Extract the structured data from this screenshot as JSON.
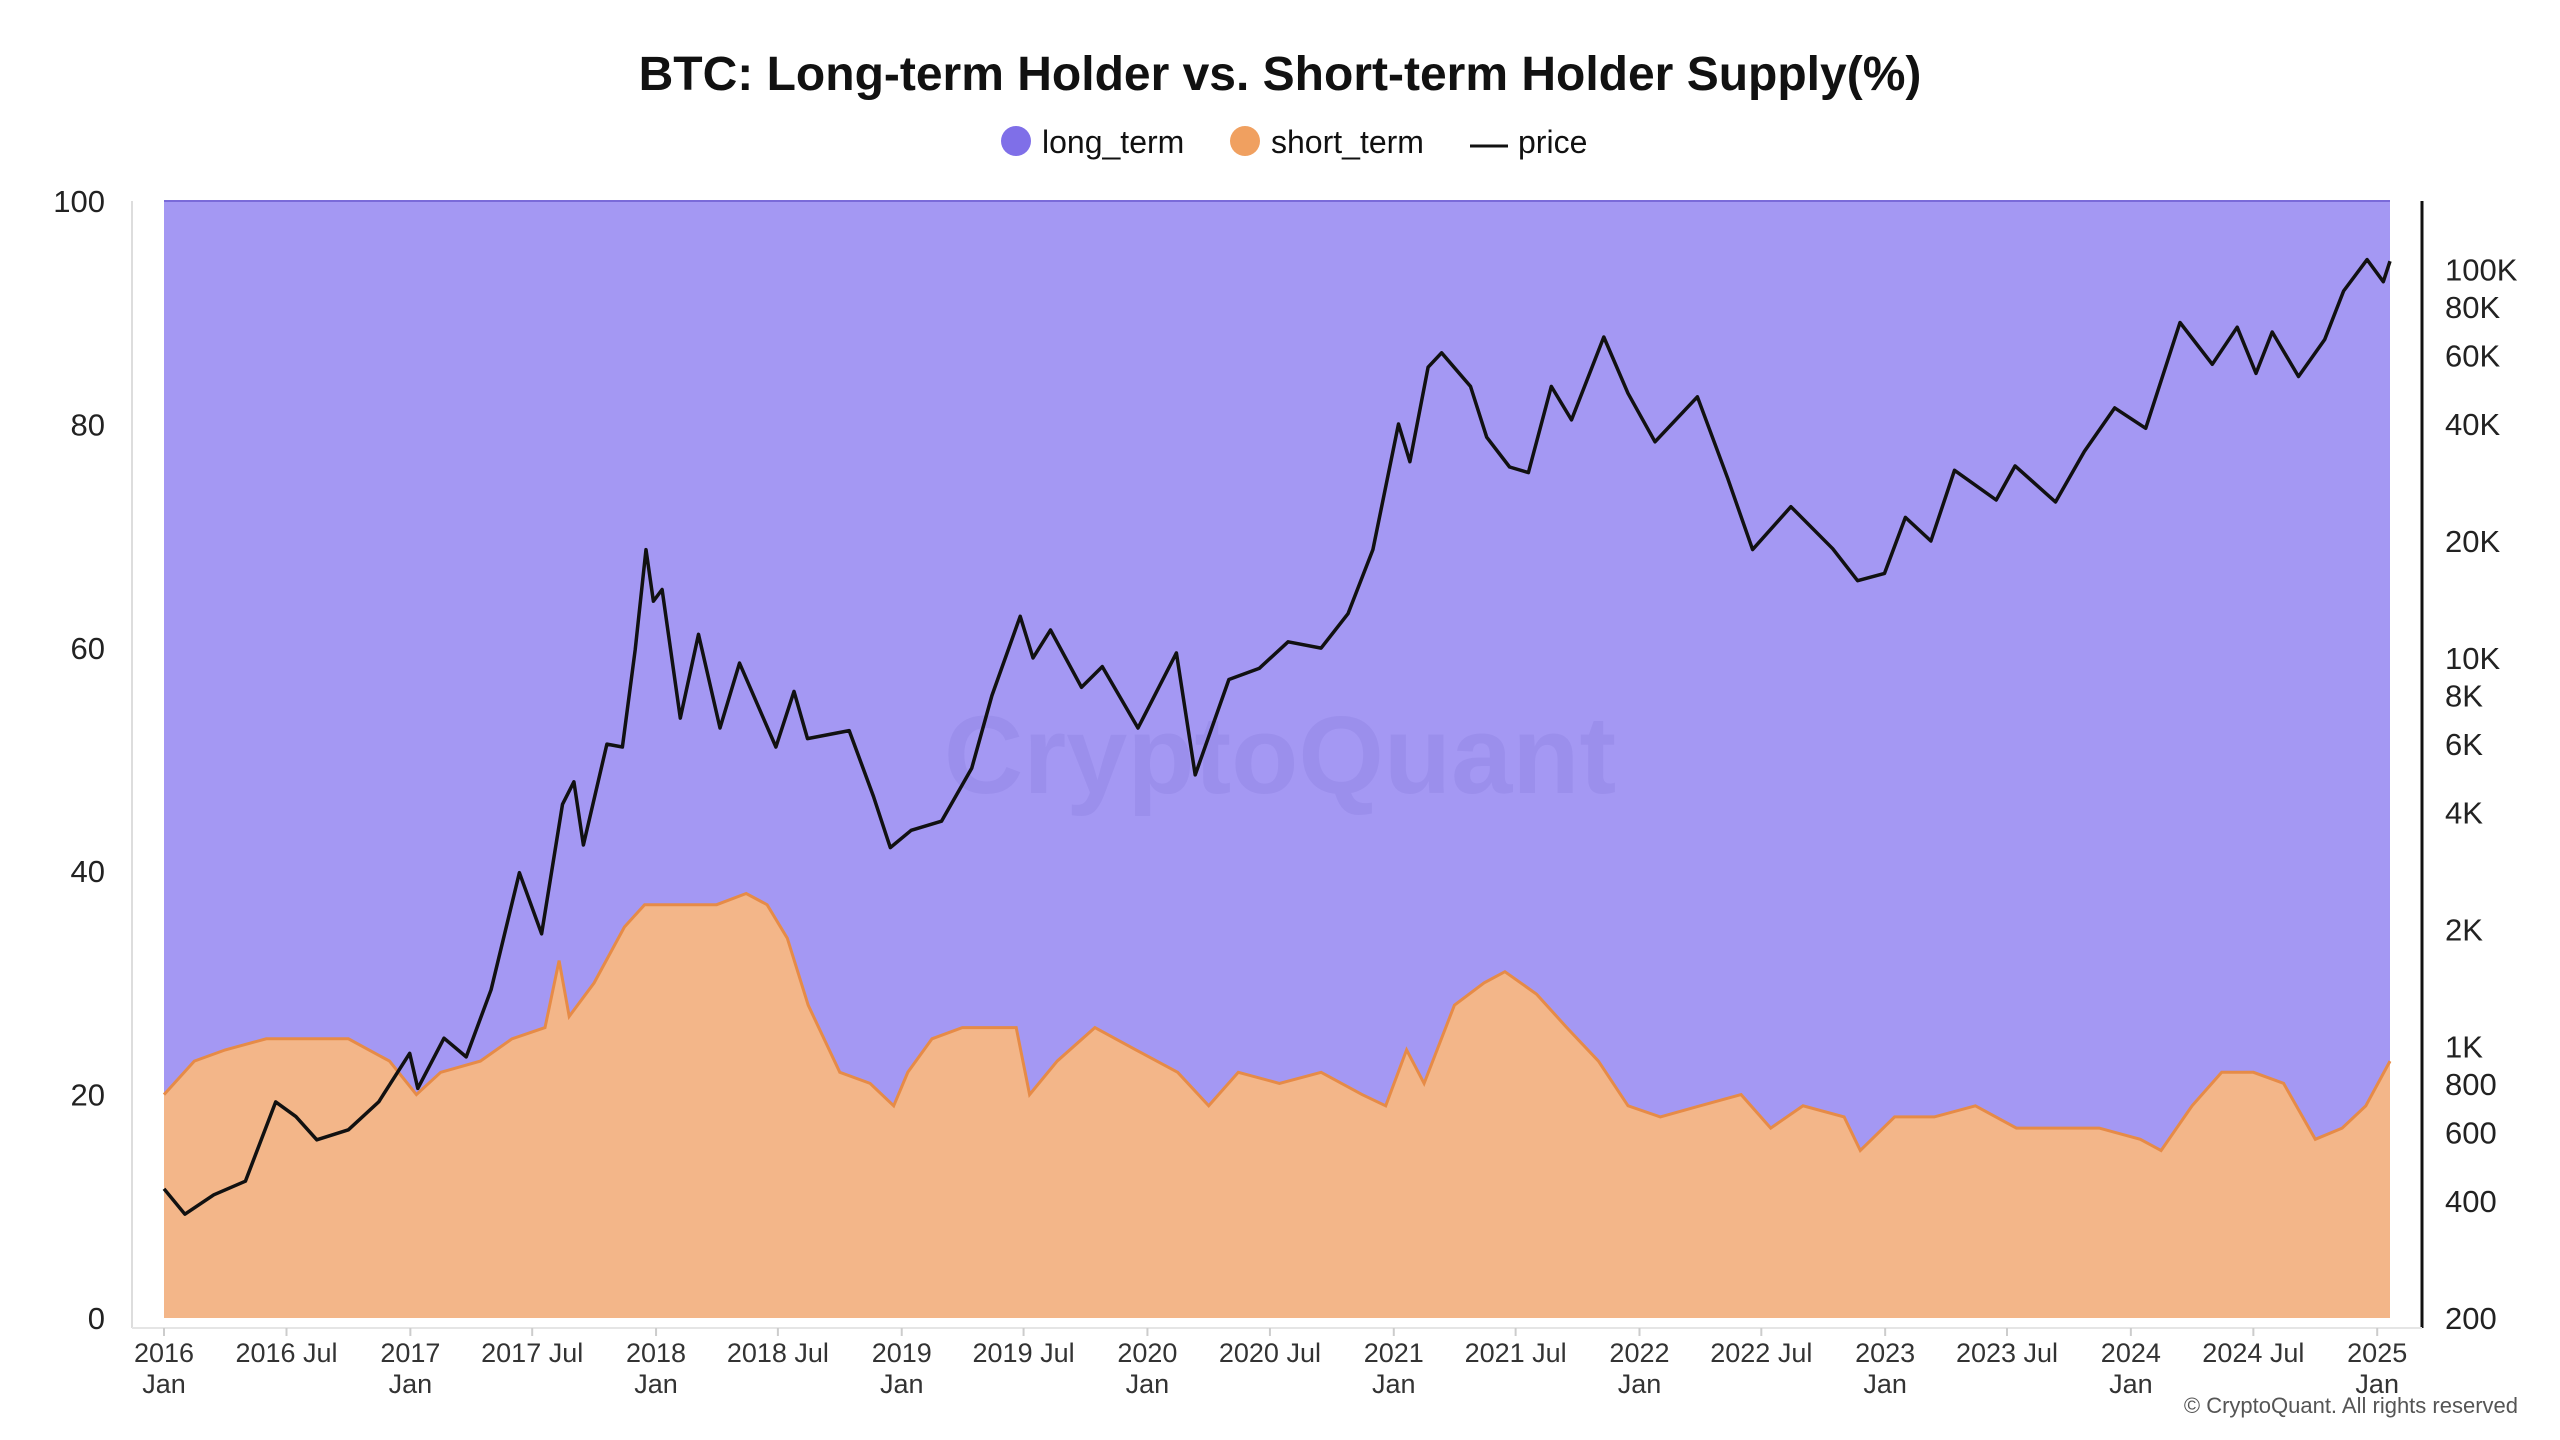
{
  "colors": {
    "long_term": "#a498f3",
    "long_term_legend": "#7f6fe8",
    "short_term": "#f3b689",
    "short_term_edge": "#e68b47",
    "short_term_legend": "#f0a060",
    "price": "#111111",
    "grid": "#eeeeee"
  },
  "watermark": "CryptoQuant",
  "copyright": "© CryptoQuant. All rights reserved",
  "chart_data": {
    "type": "area",
    "title": "BTC: Long-term Holder vs. Short-term Holder Supply(%)",
    "legend": {
      "placement": "top-center",
      "items": [
        {
          "name": "long_term",
          "marker": "circle"
        },
        {
          "name": "short_term",
          "marker": "circle"
        },
        {
          "name": "price",
          "marker": "line"
        }
      ]
    },
    "stacked": true,
    "grid": true,
    "x_range": [
      "2016-01-01",
      "2025-01-20"
    ],
    "x_ticks": [
      {
        "date": "2016-01-01",
        "label": "2016",
        "sub": "Jan"
      },
      {
        "date": "2016-07-01",
        "label": "2016 Jul",
        "sub": ""
      },
      {
        "date": "2017-01-01",
        "label": "2017",
        "sub": "Jan"
      },
      {
        "date": "2017-07-01",
        "label": "2017 Jul",
        "sub": ""
      },
      {
        "date": "2018-01-01",
        "label": "2018",
        "sub": "Jan"
      },
      {
        "date": "2018-07-01",
        "label": "2018 Jul",
        "sub": ""
      },
      {
        "date": "2019-01-01",
        "label": "2019",
        "sub": "Jan"
      },
      {
        "date": "2019-07-01",
        "label": "2019 Jul",
        "sub": ""
      },
      {
        "date": "2020-01-01",
        "label": "2020",
        "sub": "Jan"
      },
      {
        "date": "2020-07-01",
        "label": "2020 Jul",
        "sub": ""
      },
      {
        "date": "2021-01-01",
        "label": "2021",
        "sub": "Jan"
      },
      {
        "date": "2021-07-01",
        "label": "2021 Jul",
        "sub": ""
      },
      {
        "date": "2022-01-01",
        "label": "2022",
        "sub": "Jan"
      },
      {
        "date": "2022-07-01",
        "label": "2022 Jul",
        "sub": ""
      },
      {
        "date": "2023-01-01",
        "label": "2023",
        "sub": "Jan"
      },
      {
        "date": "2023-07-01",
        "label": "2023 Jul",
        "sub": ""
      },
      {
        "date": "2024-01-01",
        "label": "2024",
        "sub": "Jan"
      },
      {
        "date": "2024-07-01",
        "label": "2024 Jul",
        "sub": ""
      },
      {
        "date": "2025-01-01",
        "label": "2025",
        "sub": "Jan"
      }
    ],
    "y_left": {
      "ylim": [
        0,
        100
      ],
      "ticks": [
        0,
        20,
        40,
        60,
        80,
        100
      ]
    },
    "y_right": {
      "scale": "log",
      "ylim": [
        200,
        150000
      ],
      "ticks": [
        {
          "value": 200,
          "label": "200"
        },
        {
          "value": 400,
          "label": "400"
        },
        {
          "value": 600,
          "label": "600"
        },
        {
          "value": 800,
          "label": "800"
        },
        {
          "value": 1000,
          "label": "1K"
        },
        {
          "value": 2000,
          "label": "2K"
        },
        {
          "value": 4000,
          "label": "4K"
        },
        {
          "value": 6000,
          "label": "6K"
        },
        {
          "value": 8000,
          "label": "8K"
        },
        {
          "value": 10000,
          "label": "10K"
        },
        {
          "value": 20000,
          "label": "20K"
        },
        {
          "value": 40000,
          "label": "40K"
        },
        {
          "value": 60000,
          "label": "60K"
        },
        {
          "value": 80000,
          "label": "80K"
        },
        {
          "value": 100000,
          "label": "100K"
        }
      ]
    },
    "series": [
      {
        "name": "short_term",
        "axis": "left",
        "points": [
          [
            "2016-01-01",
            20
          ],
          [
            "2016-02-15",
            23
          ],
          [
            "2016-04-01",
            24
          ],
          [
            "2016-06-01",
            25
          ],
          [
            "2016-08-01",
            25
          ],
          [
            "2016-10-01",
            25
          ],
          [
            "2016-12-01",
            23
          ],
          [
            "2017-01-10",
            20
          ],
          [
            "2017-02-15",
            22
          ],
          [
            "2017-04-15",
            23
          ],
          [
            "2017-06-01",
            25
          ],
          [
            "2017-07-20",
            26
          ],
          [
            "2017-08-10",
            32
          ],
          [
            "2017-08-25",
            27
          ],
          [
            "2017-10-01",
            30
          ],
          [
            "2017-11-15",
            35
          ],
          [
            "2017-12-15",
            37
          ],
          [
            "2018-02-01",
            37
          ],
          [
            "2018-04-01",
            37
          ],
          [
            "2018-05-15",
            38
          ],
          [
            "2018-06-15",
            37
          ],
          [
            "2018-07-15",
            34
          ],
          [
            "2018-08-15",
            28
          ],
          [
            "2018-10-01",
            22
          ],
          [
            "2018-11-15",
            21
          ],
          [
            "2018-12-20",
            19
          ],
          [
            "2019-01-10",
            22
          ],
          [
            "2019-02-15",
            25
          ],
          [
            "2019-04-01",
            26
          ],
          [
            "2019-05-15",
            26
          ],
          [
            "2019-06-20",
            26
          ],
          [
            "2019-07-10",
            20
          ],
          [
            "2019-08-20",
            23
          ],
          [
            "2019-10-15",
            26
          ],
          [
            "2019-12-15",
            24
          ],
          [
            "2020-02-15",
            22
          ],
          [
            "2020-04-01",
            19
          ],
          [
            "2020-05-15",
            22
          ],
          [
            "2020-07-15",
            21
          ],
          [
            "2020-09-15",
            22
          ],
          [
            "2020-11-15",
            20
          ],
          [
            "2020-12-20",
            19
          ],
          [
            "2021-01-20",
            24
          ],
          [
            "2021-02-15",
            21
          ],
          [
            "2021-04-01",
            28
          ],
          [
            "2021-05-15",
            30
          ],
          [
            "2021-06-15",
            31
          ],
          [
            "2021-08-01",
            29
          ],
          [
            "2021-09-15",
            26
          ],
          [
            "2021-11-01",
            23
          ],
          [
            "2021-12-15",
            19
          ],
          [
            "2022-02-01",
            18
          ],
          [
            "2022-04-01",
            19
          ],
          [
            "2022-06-01",
            20
          ],
          [
            "2022-07-15",
            17
          ],
          [
            "2022-09-01",
            19
          ],
          [
            "2022-11-01",
            18
          ],
          [
            "2022-11-25",
            15
          ],
          [
            "2023-01-15",
            18
          ],
          [
            "2023-03-15",
            18
          ],
          [
            "2023-05-15",
            19
          ],
          [
            "2023-07-15",
            17
          ],
          [
            "2023-09-15",
            17
          ],
          [
            "2023-11-15",
            17
          ],
          [
            "2024-01-15",
            16
          ],
          [
            "2024-02-15",
            15
          ],
          [
            "2024-04-01",
            19
          ],
          [
            "2024-05-15",
            22
          ],
          [
            "2024-07-01",
            22
          ],
          [
            "2024-08-15",
            21
          ],
          [
            "2024-10-01",
            16
          ],
          [
            "2024-11-10",
            17
          ],
          [
            "2024-12-15",
            19
          ],
          [
            "2025-01-20",
            23
          ]
        ]
      },
      {
        "name": "long_term",
        "axis": "left",
        "note": "100 - short_term",
        "points": []
      },
      {
        "name": "price",
        "axis": "right",
        "points": [
          [
            "2016-01-01",
            430
          ],
          [
            "2016-02-01",
            370
          ],
          [
            "2016-03-15",
            415
          ],
          [
            "2016-05-01",
            450
          ],
          [
            "2016-06-15",
            720
          ],
          [
            "2016-07-15",
            660
          ],
          [
            "2016-08-15",
            575
          ],
          [
            "2016-10-01",
            610
          ],
          [
            "2016-11-15",
            720
          ],
          [
            "2016-12-31",
            960
          ],
          [
            "2017-01-12",
            780
          ],
          [
            "2017-02-20",
            1050
          ],
          [
            "2017-03-25",
            940
          ],
          [
            "2017-05-01",
            1400
          ],
          [
            "2017-06-12",
            2800
          ],
          [
            "2017-07-15",
            1950
          ],
          [
            "2017-08-15",
            4200
          ],
          [
            "2017-09-01",
            4800
          ],
          [
            "2017-09-15",
            3300
          ],
          [
            "2017-10-20",
            6000
          ],
          [
            "2017-11-12",
            5900
          ],
          [
            "2017-12-01",
            10500
          ],
          [
            "2017-12-17",
            19000
          ],
          [
            "2017-12-28",
            14000
          ],
          [
            "2018-01-10",
            15000
          ],
          [
            "2018-02-06",
            7000
          ],
          [
            "2018-03-05",
            11500
          ],
          [
            "2018-04-06",
            6600
          ],
          [
            "2018-05-05",
            9700
          ],
          [
            "2018-06-28",
            5900
          ],
          [
            "2018-07-25",
            8200
          ],
          [
            "2018-08-14",
            6200
          ],
          [
            "2018-10-15",
            6500
          ],
          [
            "2018-11-20",
            4400
          ],
          [
            "2018-12-15",
            3250
          ],
          [
            "2019-01-15",
            3600
          ],
          [
            "2019-03-01",
            3800
          ],
          [
            "2019-04-15",
            5200
          ],
          [
            "2019-05-15",
            8000
          ],
          [
            "2019-06-26",
            12800
          ],
          [
            "2019-07-15",
            10000
          ],
          [
            "2019-08-10",
            11800
          ],
          [
            "2019-09-25",
            8400
          ],
          [
            "2019-10-26",
            9500
          ],
          [
            "2019-12-18",
            6600
          ],
          [
            "2020-02-13",
            10300
          ],
          [
            "2020-03-12",
            5000
          ],
          [
            "2020-05-01",
            8800
          ],
          [
            "2020-06-15",
            9400
          ],
          [
            "2020-07-28",
            11000
          ],
          [
            "2020-09-15",
            10600
          ],
          [
            "2020-10-25",
            13000
          ],
          [
            "2020-12-01",
            19000
          ],
          [
            "2021-01-08",
            40000
          ],
          [
            "2021-01-25",
            32000
          ],
          [
            "2021-02-21",
            56000
          ],
          [
            "2021-03-13",
            61000
          ],
          [
            "2021-04-25",
            50000
          ],
          [
            "2021-05-19",
            37000
          ],
          [
            "2021-06-22",
            31000
          ],
          [
            "2021-07-20",
            30000
          ],
          [
            "2021-08-23",
            50000
          ],
          [
            "2021-09-22",
            41000
          ],
          [
            "2021-11-09",
            67000
          ],
          [
            "2021-12-15",
            48000
          ],
          [
            "2022-01-24",
            36000
          ],
          [
            "2022-03-28",
            47000
          ],
          [
            "2022-05-12",
            29000
          ],
          [
            "2022-06-18",
            19000
          ],
          [
            "2022-08-14",
            24500
          ],
          [
            "2022-10-15",
            19100
          ],
          [
            "2022-11-21",
            15800
          ],
          [
            "2022-12-31",
            16500
          ],
          [
            "2023-01-31",
            23000
          ],
          [
            "2023-03-10",
            20000
          ],
          [
            "2023-04-14",
            30400
          ],
          [
            "2023-06-15",
            25500
          ],
          [
            "2023-07-13",
            31200
          ],
          [
            "2023-09-11",
            25200
          ],
          [
            "2023-10-24",
            34000
          ],
          [
            "2023-12-08",
            44000
          ],
          [
            "2024-01-23",
            39000
          ],
          [
            "2024-03-14",
            73000
          ],
          [
            "2024-05-01",
            57000
          ],
          [
            "2024-06-07",
            71000
          ],
          [
            "2024-07-05",
            54000
          ],
          [
            "2024-07-29",
            69000
          ],
          [
            "2024-09-06",
            53000
          ],
          [
            "2024-10-15",
            66000
          ],
          [
            "2024-11-12",
            88000
          ],
          [
            "2024-12-17",
            106000
          ],
          [
            "2025-01-10",
            93000
          ],
          [
            "2025-01-20",
            105000
          ]
        ]
      }
    ]
  }
}
